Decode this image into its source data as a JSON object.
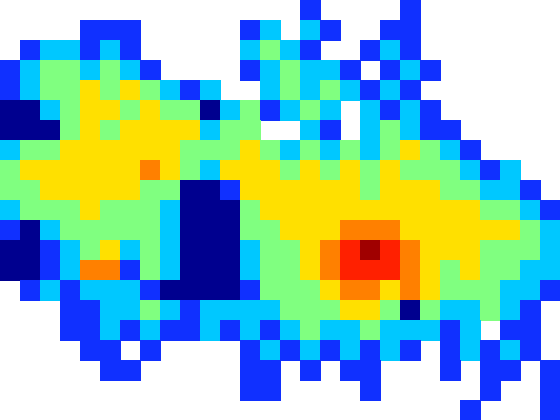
{
  "chart_data": {
    "type": "heatmap",
    "tick_labels": false,
    "levels": [
      1,
      2,
      3,
      4,
      5,
      6,
      7,
      8
    ],
    "colors": [
      "#00008f",
      "#1030ff",
      "#00c8ff",
      "#80ff80",
      "#ffe000",
      "#ff8000",
      "#ff2000",
      "#a00000"
    ],
    "z": [
      [
        null,
        null,
        null,
        null,
        null,
        null,
        null,
        null,
        null,
        null,
        null,
        null,
        null,
        null,
        null,
        2,
        null,
        null,
        null,
        null,
        2,
        null,
        null,
        null,
        null,
        null,
        null,
        null
      ],
      [
        null,
        null,
        null,
        null,
        2,
        2,
        2,
        null,
        null,
        null,
        null,
        null,
        2,
        3,
        null,
        3,
        2,
        null,
        null,
        2,
        2,
        null,
        null,
        null,
        null,
        null,
        null,
        null
      ],
      [
        null,
        2,
        3,
        3,
        2,
        3,
        2,
        null,
        null,
        null,
        null,
        null,
        3,
        4,
        3,
        2,
        null,
        null,
        2,
        3,
        2,
        null,
        null,
        null,
        null,
        null,
        null,
        null
      ],
      [
        2,
        3,
        4,
        4,
        3,
        4,
        3,
        2,
        null,
        null,
        null,
        null,
        2,
        3,
        4,
        3,
        3,
        2,
        null,
        2,
        3,
        2,
        null,
        null,
        null,
        null,
        null,
        null
      ],
      [
        2,
        3,
        4,
        4,
        5,
        4,
        5,
        4,
        3,
        2,
        3,
        null,
        null,
        3,
        4,
        3,
        4,
        3,
        2,
        3,
        2,
        null,
        null,
        null,
        null,
        null,
        null,
        null
      ],
      [
        1,
        1,
        3,
        4,
        5,
        5,
        4,
        5,
        4,
        4,
        1,
        3,
        4,
        2,
        3,
        4,
        3,
        null,
        3,
        2,
        3,
        2,
        null,
        null,
        null,
        null,
        null,
        null
      ],
      [
        1,
        1,
        1,
        4,
        5,
        4,
        5,
        5,
        5,
        5,
        3,
        4,
        4,
        null,
        null,
        3,
        2,
        null,
        3,
        4,
        3,
        2,
        2,
        null,
        null,
        null,
        null,
        null
      ],
      [
        3,
        4,
        4,
        5,
        5,
        5,
        5,
        5,
        5,
        4,
        4,
        4,
        5,
        4,
        3,
        4,
        3,
        4,
        3,
        4,
        5,
        4,
        3,
        2,
        null,
        null,
        null,
        null
      ],
      [
        4,
        5,
        5,
        5,
        5,
        5,
        5,
        6,
        5,
        4,
        3,
        5,
        5,
        5,
        4,
        5,
        4,
        5,
        4,
        5,
        4,
        4,
        4,
        3,
        2,
        3,
        null,
        null
      ],
      [
        4,
        4,
        5,
        5,
        5,
        5,
        5,
        4,
        4,
        1,
        1,
        2,
        5,
        5,
        5,
        5,
        5,
        5,
        4,
        5,
        5,
        5,
        4,
        4,
        3,
        3,
        2,
        null
      ],
      [
        3,
        4,
        4,
        4,
        5,
        4,
        4,
        4,
        3,
        1,
        1,
        1,
        4,
        5,
        5,
        5,
        5,
        5,
        5,
        5,
        5,
        5,
        5,
        5,
        4,
        4,
        3,
        2
      ],
      [
        2,
        1,
        3,
        4,
        4,
        4,
        4,
        4,
        3,
        1,
        1,
        1,
        4,
        4,
        5,
        5,
        5,
        6,
        6,
        6,
        5,
        5,
        5,
        5,
        5,
        5,
        4,
        3
      ],
      [
        1,
        1,
        2,
        3,
        4,
        5,
        3,
        4,
        3,
        1,
        1,
        1,
        3,
        4,
        4,
        5,
        6,
        7,
        8,
        7,
        6,
        5,
        5,
        5,
        4,
        4,
        4,
        3
      ],
      [
        1,
        1,
        2,
        3,
        6,
        6,
        2,
        4,
        3,
        1,
        1,
        1,
        3,
        4,
        4,
        5,
        6,
        7,
        7,
        7,
        6,
        5,
        4,
        5,
        4,
        4,
        3,
        3
      ],
      [
        null,
        2,
        3,
        2,
        3,
        3,
        3,
        2,
        1,
        1,
        1,
        1,
        2,
        4,
        4,
        4,
        5,
        6,
        6,
        5,
        6,
        5,
        4,
        4,
        4,
        3,
        3,
        2
      ],
      [
        null,
        null,
        null,
        2,
        2,
        3,
        3,
        4,
        3,
        2,
        3,
        3,
        3,
        3,
        4,
        4,
        4,
        5,
        5,
        4,
        1,
        4,
        3,
        3,
        4,
        3,
        2,
        null
      ],
      [
        null,
        null,
        null,
        2,
        2,
        3,
        2,
        3,
        2,
        2,
        3,
        2,
        3,
        2,
        3,
        4,
        3,
        3,
        4,
        3,
        3,
        3,
        2,
        3,
        null,
        2,
        2,
        null
      ],
      [
        null,
        null,
        null,
        null,
        2,
        2,
        null,
        2,
        null,
        null,
        null,
        null,
        2,
        3,
        2,
        3,
        2,
        3,
        2,
        3,
        2,
        null,
        2,
        3,
        2,
        3,
        2,
        null
      ],
      [
        null,
        null,
        null,
        null,
        null,
        2,
        2,
        null,
        null,
        null,
        null,
        null,
        2,
        2,
        null,
        2,
        null,
        2,
        2,
        null,
        null,
        null,
        2,
        null,
        2,
        2,
        null,
        2
      ],
      [
        null,
        null,
        null,
        null,
        null,
        null,
        null,
        null,
        null,
        null,
        null,
        null,
        2,
        2,
        null,
        null,
        null,
        null,
        2,
        null,
        null,
        null,
        null,
        null,
        2,
        null,
        null,
        2
      ],
      [
        null,
        null,
        null,
        null,
        null,
        null,
        null,
        null,
        null,
        null,
        null,
        null,
        null,
        null,
        null,
        null,
        null,
        null,
        null,
        null,
        null,
        null,
        null,
        2,
        null,
        null,
        null,
        2
      ]
    ]
  }
}
